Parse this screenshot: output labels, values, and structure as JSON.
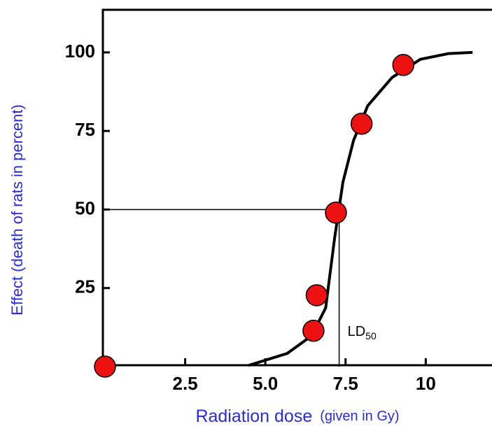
{
  "chart_data": {
    "type": "dose-response",
    "xlabel": "Radiation dose",
    "xlabel_note": "(given in Gy)",
    "ylabel": "Effect (death of rats in percent)",
    "xlim": [
      0,
      12
    ],
    "ylim": [
      0,
      114
    ],
    "xticks": [
      2.5,
      {
        "value": 5,
        "label": "5.0"
      },
      7.5,
      10
    ],
    "yticks": [
      25,
      50,
      75,
      100
    ],
    "series": [
      {
        "name": "curve",
        "kind": "line",
        "color": "#000000",
        "x": [
          4.48,
          5.68,
          6.44,
          6.88,
          7.16,
          7.42,
          7.75,
          8.19,
          8.95,
          9.83,
          10.7,
          11.46
        ],
        "values": [
          0.4,
          4.2,
          9.8,
          18.7,
          41,
          58.8,
          72,
          83,
          92,
          97.8,
          99.6,
          100
        ]
      },
      {
        "name": "points",
        "kind": "scatter",
        "color": "#ee1111",
        "x": [
          0,
          6.5,
          6.6,
          7.2,
          8.0,
          9.3
        ],
        "values": [
          0,
          11.4,
          22.7,
          49,
          77.3,
          96
        ]
      }
    ],
    "reference": {
      "text": "LD",
      "subscript": "50",
      "x": 7.3,
      "y": 50
    }
  }
}
